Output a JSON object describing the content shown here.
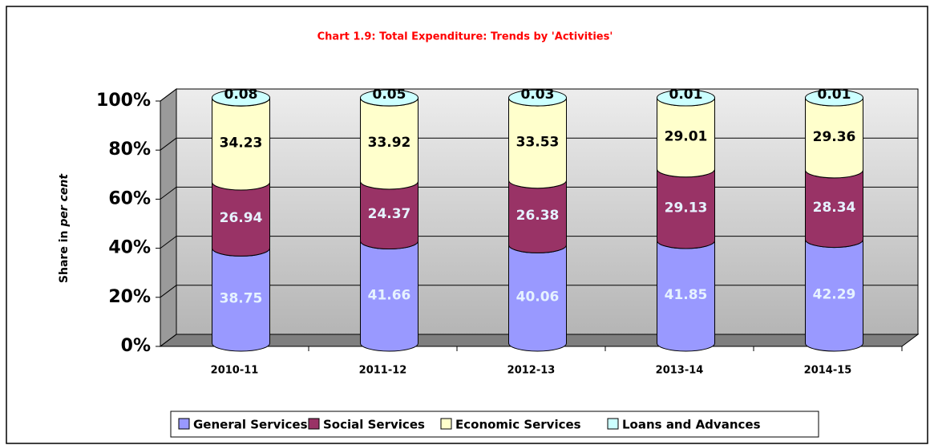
{
  "chart_data": {
    "type": "stacked_bar_3d",
    "title": "Chart 1.9: Total Expenditure: Trends by 'Activities'",
    "y_label": [
      "Share in",
      "per cent"
    ],
    "categories": [
      "2010-11",
      "2011-12",
      "2012-13",
      "2013-14",
      "2014-15"
    ],
    "series": [
      {
        "name": "General Services",
        "color": "#9999ff",
        "values": [
          38.75,
          41.66,
          40.06,
          41.85,
          42.29
        ]
      },
      {
        "name": "Social Services",
        "color": "#993366",
        "values": [
          26.94,
          24.37,
          26.38,
          29.13,
          28.34
        ]
      },
      {
        "name": "Economic Services",
        "color": "#ffffcc",
        "values": [
          34.23,
          33.92,
          33.53,
          29.01,
          29.36
        ]
      },
      {
        "name": "Loans and Advances",
        "color": "#ccffff",
        "values": [
          0.08,
          0.05,
          0.03,
          0.01,
          0.01
        ]
      }
    ],
    "ylim": [
      0,
      100
    ],
    "yticks": [
      {
        "value": 0,
        "label": "0%"
      },
      {
        "value": 20,
        "label": "20%"
      },
      {
        "value": 40,
        "label": "40%"
      },
      {
        "value": 60,
        "label": "60%"
      },
      {
        "value": 80,
        "label": "80%"
      },
      {
        "value": 100,
        "label": "100%"
      }
    ],
    "grid": true,
    "legend": "bottom"
  }
}
